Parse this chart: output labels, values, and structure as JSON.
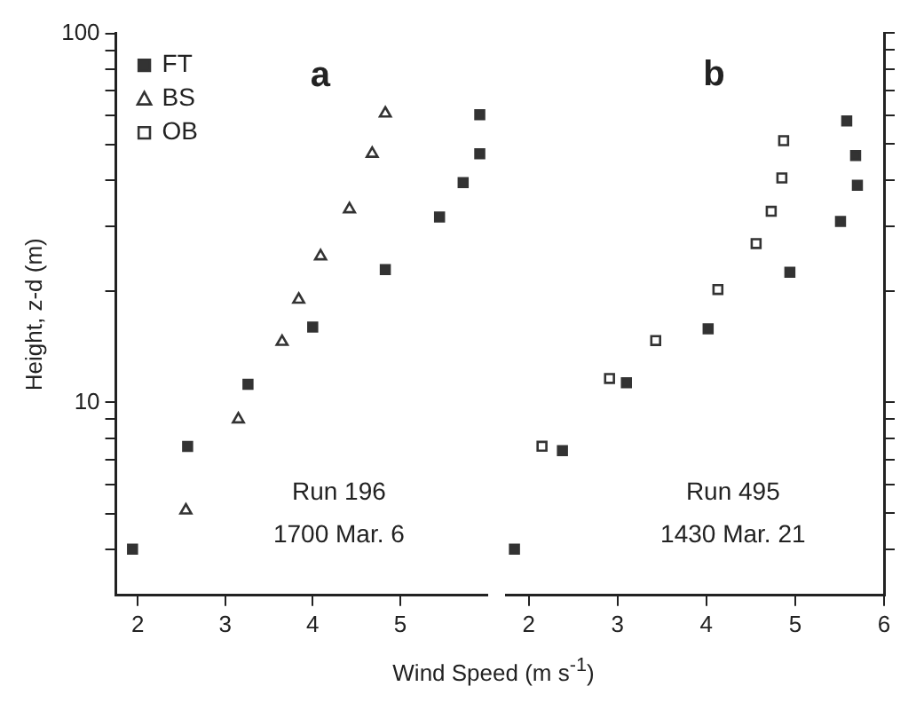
{
  "chart_data": [
    {
      "type": "scatter",
      "title": "a",
      "ylabel": "Height, z-d (m)",
      "xlabel": "Wind Speed (m s$^{-1}$)",
      "annotations": [
        "Run 196",
        "1700 Mar. 6"
      ],
      "log": "y",
      "grid": false,
      "legend": "top left",
      "xlim": [
        1.75,
        6
      ],
      "xticks": [
        2,
        3,
        4,
        5
      ],
      "ylim": [
        3,
        100
      ],
      "yticks": [
        {
          "value": 4,
          "label": null
        },
        {
          "value": 5,
          "label": null
        },
        {
          "value": 6,
          "label": null
        },
        {
          "value": 7,
          "label": null
        },
        {
          "value": 8,
          "label": null
        },
        {
          "value": 9,
          "label": null
        },
        10,
        {
          "value": 20,
          "label": null
        },
        {
          "value": 30,
          "label": null
        },
        {
          "value": 40,
          "label": null
        },
        {
          "value": 50,
          "label": null
        },
        {
          "value": 60,
          "label": null
        },
        {
          "value": 70,
          "label": null
        },
        {
          "value": 80,
          "label": null
        },
        {
          "value": 90,
          "label": null
        },
        100
      ],
      "series": [
        {
          "name": "FT",
          "color": "#333333",
          "marker": "square",
          "x": [
            1.94,
            2.57,
            3.26,
            4.0,
            4.83,
            5.45,
            5.72,
            5.91,
            5.91
          ],
          "values": [
            4.0,
            7.6,
            11.2,
            16.0,
            22.9,
            31.8,
            39.4,
            47.2,
            60.2
          ]
        },
        {
          "name": "BS",
          "color": "#333333",
          "marker": "triangle",
          "x": [
            2.55,
            3.15,
            3.65,
            3.84,
            4.09,
            4.42,
            4.68,
            4.83
          ],
          "values": [
            5.1,
            9.0,
            14.6,
            19.0,
            24.9,
            33.4,
            47.2,
            60.7
          ]
        },
        {
          "name": "OB",
          "color": "#333333",
          "marker": "square"
        }
      ]
    },
    {
      "type": "scatter",
      "title": "b",
      "annotations": [
        "Run 495",
        "1430 Mar. 21"
      ],
      "log": "y",
      "grid": false,
      "tick_labels": "x",
      "xlim": [
        1.75,
        6
      ],
      "xticks": [
        2,
        3,
        4,
        5,
        6
      ],
      "ylim": [
        3,
        100
      ],
      "yticks": [
        {
          "value": 4,
          "label": null
        },
        {
          "value": 5,
          "label": null
        },
        {
          "value": 6,
          "label": null
        },
        {
          "value": 7,
          "label": null
        },
        {
          "value": 8,
          "label": null
        },
        {
          "value": 9,
          "label": null
        },
        {
          "value": 10,
          "label": null
        },
        {
          "value": 20,
          "label": null
        },
        {
          "value": 30,
          "label": null
        },
        {
          "value": 40,
          "label": null
        },
        {
          "value": 50,
          "label": null
        },
        {
          "value": 60,
          "label": null
        },
        {
          "value": 70,
          "label": null
        },
        {
          "value": 80,
          "label": null
        },
        {
          "value": 90,
          "label": null
        },
        {
          "value": 100,
          "label": null
        }
      ],
      "series": [
        {
          "color": "#333333",
          "marker": "square",
          "x": [
            1.84,
            2.38,
            3.1,
            4.02,
            4.94,
            5.51,
            5.7,
            5.68,
            5.58
          ],
          "values": [
            4.0,
            7.4,
            11.3,
            15.8,
            22.5,
            30.9,
            38.7,
            46.6,
            57.8
          ]
        },
        {
          "color": "#333333",
          "marker": "square",
          "x": [
            2.15,
            2.91,
            3.43,
            4.13,
            4.56,
            4.73,
            4.85,
            4.87
          ],
          "values": [
            7.6,
            11.6,
            14.7,
            20.2,
            26.9,
            32.9,
            40.5,
            51.1
          ]
        }
      ]
    }
  ]
}
